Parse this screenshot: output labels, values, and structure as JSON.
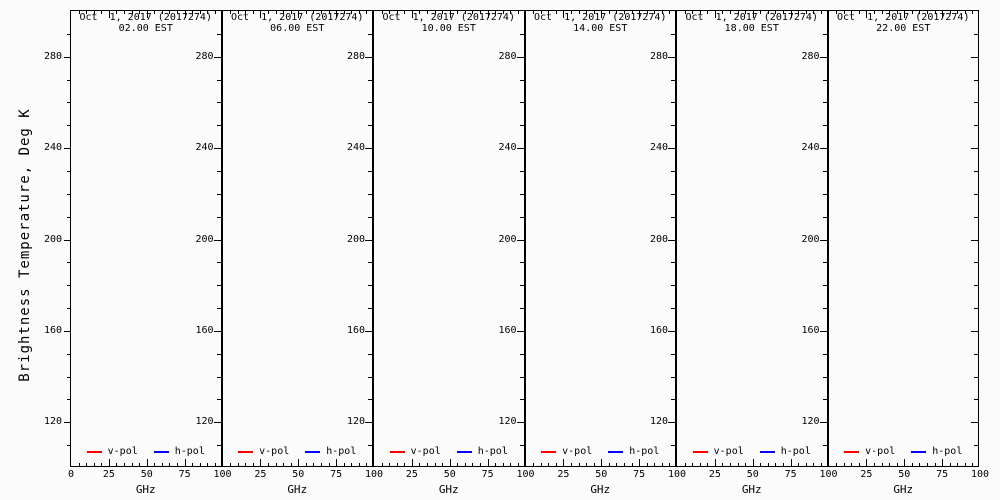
{
  "figure": {
    "ylabel": "Brightness Temperature, Deg K",
    "bg_color": "#fbfbfb",
    "axis_color": "#000000"
  },
  "axes": {
    "x": {
      "label": "GHz",
      "min": 0,
      "max": 100,
      "major_ticks": [
        0,
        25,
        50,
        75,
        100
      ],
      "minor_step": 5
    },
    "y": {
      "min": 100,
      "max": 300,
      "major_ticks": [
        280,
        240,
        200,
        160,
        120
      ],
      "minor_step": 10
    }
  },
  "legend": {
    "items": [
      {
        "label": "v-pol",
        "color": "#ff0000"
      },
      {
        "label": "h-pol",
        "color": "#0000ff"
      }
    ]
  },
  "panels": [
    {
      "title_line1": "Oct  1, 2017 (2017274)",
      "title_line2": "02.00 EST"
    },
    {
      "title_line1": "Oct  1, 2017 (2017274)",
      "title_line2": "06.00 EST"
    },
    {
      "title_line1": "Oct  1, 2017 (2017274)",
      "title_line2": "10.00 EST"
    },
    {
      "title_line1": "Oct  1, 2017 (2017274)",
      "title_line2": "14.00 EST"
    },
    {
      "title_line1": "Oct  1, 2017 (2017274)",
      "title_line2": "18.00 EST"
    },
    {
      "title_line1": "Oct  1, 2017 (2017274)",
      "title_line2": "22.00 EST"
    }
  ],
  "chart_data": [
    {
      "type": "line",
      "title": "Oct 1, 2017 (2017274)",
      "subtitle": "02.00 EST",
      "xlabel": "GHz",
      "ylabel": "Brightness Temperature, Deg K",
      "xlim": [
        0,
        100
      ],
      "ylim": [
        100,
        300
      ],
      "xticks": [
        0,
        25,
        50,
        75,
        100
      ],
      "yticks": [
        120,
        160,
        200,
        240,
        280
      ],
      "grid": false,
      "legend_position": "bottom-inside",
      "series": [
        {
          "name": "v-pol",
          "color": "#ff0000",
          "x": [],
          "y": []
        },
        {
          "name": "h-pol",
          "color": "#0000ff",
          "x": [],
          "y": []
        }
      ]
    },
    {
      "type": "line",
      "title": "Oct 1, 2017 (2017274)",
      "subtitle": "06.00 EST",
      "xlabel": "GHz",
      "ylabel": "Brightness Temperature, Deg K",
      "xlim": [
        0,
        100
      ],
      "ylim": [
        100,
        300
      ],
      "xticks": [
        0,
        25,
        50,
        75,
        100
      ],
      "yticks": [
        120,
        160,
        200,
        240,
        280
      ],
      "grid": false,
      "legend_position": "bottom-inside",
      "series": [
        {
          "name": "v-pol",
          "color": "#ff0000",
          "x": [],
          "y": []
        },
        {
          "name": "h-pol",
          "color": "#0000ff",
          "x": [],
          "y": []
        }
      ]
    },
    {
      "type": "line",
      "title": "Oct 1, 2017 (2017274)",
      "subtitle": "10.00 EST",
      "xlabel": "GHz",
      "ylabel": "Brightness Temperature, Deg K",
      "xlim": [
        0,
        100
      ],
      "ylim": [
        100,
        300
      ],
      "xticks": [
        0,
        25,
        50,
        75,
        100
      ],
      "yticks": [
        120,
        160,
        200,
        240,
        280
      ],
      "grid": false,
      "legend_position": "bottom-inside",
      "series": [
        {
          "name": "v-pol",
          "color": "#ff0000",
          "x": [],
          "y": []
        },
        {
          "name": "h-pol",
          "color": "#0000ff",
          "x": [],
          "y": []
        }
      ]
    },
    {
      "type": "line",
      "title": "Oct 1, 2017 (2017274)",
      "subtitle": "14.00 EST",
      "xlabel": "GHz",
      "ylabel": "Brightness Temperature, Deg K",
      "xlim": [
        0,
        100
      ],
      "ylim": [
        100,
        300
      ],
      "xticks": [
        0,
        25,
        50,
        75,
        100
      ],
      "yticks": [
        120,
        160,
        200,
        240,
        280
      ],
      "grid": false,
      "legend_position": "bottom-inside",
      "series": [
        {
          "name": "v-pol",
          "color": "#ff0000",
          "x": [],
          "y": []
        },
        {
          "name": "h-pol",
          "color": "#0000ff",
          "x": [],
          "y": []
        }
      ]
    },
    {
      "type": "line",
      "title": "Oct 1, 2017 (2017274)",
      "subtitle": "18.00 EST",
      "xlabel": "GHz",
      "ylabel": "Brightness Temperature, Deg K",
      "xlim": [
        0,
        100
      ],
      "ylim": [
        100,
        300
      ],
      "xticks": [
        0,
        25,
        50,
        75,
        100
      ],
      "yticks": [
        120,
        160,
        200,
        240,
        280
      ],
      "grid": false,
      "legend_position": "bottom-inside",
      "series": [
        {
          "name": "v-pol",
          "color": "#ff0000",
          "x": [],
          "y": []
        },
        {
          "name": "h-pol",
          "color": "#0000ff",
          "x": [],
          "y": []
        }
      ]
    },
    {
      "type": "line",
      "title": "Oct 1, 2017 (2017274)",
      "subtitle": "22.00 EST",
      "xlabel": "GHz",
      "ylabel": "Brightness Temperature, Deg K",
      "xlim": [
        0,
        100
      ],
      "ylim": [
        100,
        300
      ],
      "xticks": [
        0,
        25,
        50,
        75,
        100
      ],
      "yticks": [
        120,
        160,
        200,
        240,
        280
      ],
      "grid": false,
      "legend_position": "bottom-inside",
      "series": [
        {
          "name": "v-pol",
          "color": "#ff0000",
          "x": [],
          "y": []
        },
        {
          "name": "h-pol",
          "color": "#0000ff",
          "x": [],
          "y": []
        }
      ]
    }
  ]
}
